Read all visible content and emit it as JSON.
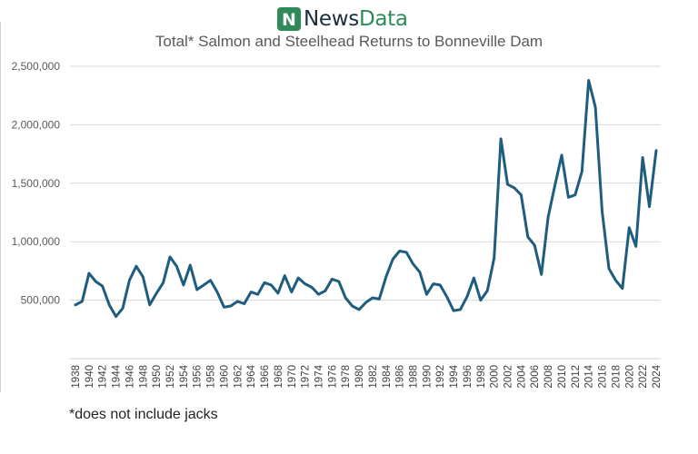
{
  "brand": {
    "name_part1": "News",
    "name_part2": "Data",
    "mark_letter": "N",
    "mark_color": "#2e8b57",
    "text_color": "#1a2d3d"
  },
  "footnote": "*does not include jacks",
  "chart_data": {
    "type": "line",
    "title": "Total* Salmon and Steelhead Returns to Bonneville Dam",
    "xlabel": "",
    "ylabel": "",
    "line_color": "#1f5d7f",
    "grid": true,
    "ylim": [
      0,
      2500000
    ],
    "y_ticks": [
      500000,
      1000000,
      1500000,
      2000000,
      2500000
    ],
    "y_tick_labels": [
      "500,000",
      "1,000,000",
      "1,500,000",
      "2,000,000",
      "2,500,000"
    ],
    "x_tick_labels": [
      "1938",
      "1940",
      "1942",
      "1944",
      "1946",
      "1948",
      "1950",
      "1952",
      "1954",
      "1956",
      "1958",
      "1960",
      "1962",
      "1964",
      "1966",
      "1968",
      "1970",
      "1972",
      "1974",
      "1976",
      "1978",
      "1980",
      "1982",
      "1984",
      "1986",
      "1988",
      "1990",
      "1992",
      "1994",
      "1996",
      "1998",
      "2000",
      "2002",
      "2004",
      "2006",
      "2008",
      "2010",
      "2012",
      "2014",
      "2016",
      "2018",
      "2020",
      "2022",
      "2024"
    ],
    "series": [
      {
        "x": [
          1938,
          1939,
          1940,
          1941,
          1942,
          1943,
          1944,
          1945,
          1946,
          1947,
          1948,
          1949,
          1950,
          1951,
          1952,
          1953,
          1954,
          1955,
          1956,
          1957,
          1958,
          1959,
          1960,
          1961,
          1962,
          1963,
          1964,
          1965,
          1966,
          1967,
          1968,
          1969,
          1970,
          1971,
          1972,
          1973,
          1974,
          1975,
          1976,
          1977,
          1978,
          1979,
          1980,
          1981,
          1982,
          1983,
          1984,
          1985,
          1986,
          1987,
          1988,
          1989,
          1990,
          1991,
          1992,
          1993,
          1994,
          1995,
          1996,
          1997,
          1998,
          1999,
          2000,
          2001,
          2002,
          2003,
          2004,
          2005,
          2006,
          2007,
          2008,
          2009,
          2010,
          2011,
          2012,
          2013,
          2014,
          2015,
          2016,
          2017,
          2018,
          2019,
          2020,
          2021,
          2022,
          2023,
          2024
        ],
        "values": [
          460000,
          490000,
          730000,
          660000,
          620000,
          460000,
          360000,
          430000,
          670000,
          790000,
          700000,
          460000,
          560000,
          650000,
          870000,
          790000,
          630000,
          800000,
          590000,
          630000,
          670000,
          570000,
          440000,
          450000,
          490000,
          470000,
          570000,
          550000,
          650000,
          630000,
          560000,
          710000,
          570000,
          690000,
          640000,
          610000,
          550000,
          580000,
          680000,
          660000,
          520000,
          450000,
          420000,
          480000,
          520000,
          510000,
          700000,
          850000,
          920000,
          910000,
          810000,
          740000,
          550000,
          640000,
          630000,
          530000,
          410000,
          420000,
          530000,
          690000,
          500000,
          580000,
          860000,
          1880000,
          1490000,
          1460000,
          1400000,
          1040000,
          970000,
          720000,
          1210000,
          1480000,
          1740000,
          1380000,
          1400000,
          1600000,
          2380000,
          2150000,
          1260000,
          770000,
          670000,
          600000,
          1120000,
          960000,
          1720000,
          1300000,
          1780000
        ]
      }
    ]
  }
}
